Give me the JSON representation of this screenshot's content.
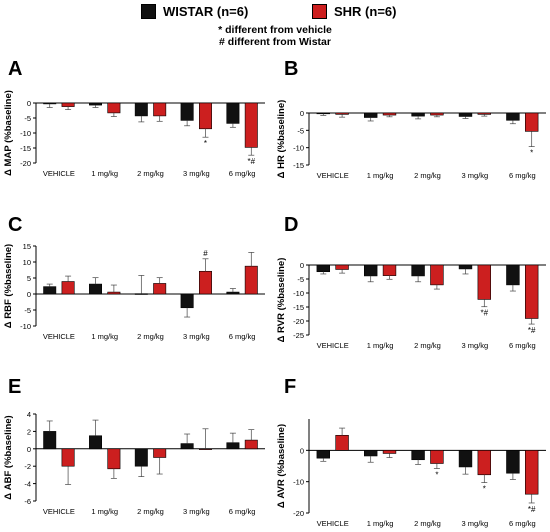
{
  "legend": {
    "items": [
      {
        "label": "WISTAR (n=6)",
        "color": "#111111"
      },
      {
        "label": "SHR (n=6)",
        "color": "#cc1f1f"
      }
    ],
    "note_star": "* different from vehicle",
    "note_hash": "# different from Wistar"
  },
  "chart_data": [
    {
      "panel": "A",
      "type": "bar",
      "ylabel": "Δ MAP (%baseline)",
      "categories": [
        "VEHICLE",
        "1 mg/kg",
        "2 mg/kg",
        "3 mg/kg",
        "6 mg/kg"
      ],
      "ylim": [
        -20,
        0
      ],
      "yticks": [
        0,
        -5,
        -10,
        -15,
        -20
      ],
      "series": [
        {
          "name": "WISTAR (n=6)",
          "values": [
            -0.3,
            -0.7,
            -4.3,
            -5.8,
            -6.8
          ],
          "errors": [
            1.2,
            0.8,
            2.0,
            1.8,
            1.3
          ]
        },
        {
          "name": "SHR (n=6)",
          "values": [
            -1.2,
            -3.3,
            -4.3,
            -8.6,
            -14.8
          ],
          "errors": [
            1.0,
            1.2,
            1.8,
            2.8,
            2.6
          ]
        }
      ],
      "annotations": [
        {
          "category": "3 mg/kg",
          "series": 1,
          "text": "*"
        },
        {
          "category": "6 mg/kg",
          "series": 1,
          "text": "*#"
        }
      ]
    },
    {
      "panel": "B",
      "type": "bar",
      "ylabel": "Δ HR (%baseline)",
      "categories": [
        "VEHICLE",
        "1 mg/kg",
        "2 mg/kg",
        "3 mg/kg",
        "6 mg/kg"
      ],
      "ylim": [
        -15,
        0
      ],
      "yticks": [
        0,
        -5,
        -10,
        -15
      ],
      "series": [
        {
          "name": "WISTAR (n=6)",
          "values": [
            -0.2,
            -1.3,
            -0.9,
            -1.0,
            -2.1
          ],
          "errors": [
            0.5,
            1.0,
            0.8,
            0.6,
            1.0
          ]
        },
        {
          "name": "SHR (n=6)",
          "values": [
            -0.4,
            -0.6,
            -0.6,
            -0.4,
            -5.3
          ],
          "errors": [
            0.8,
            0.5,
            0.5,
            0.5,
            4.4
          ]
        }
      ],
      "annotations": [
        {
          "category": "6 mg/kg",
          "series": 1,
          "text": "*"
        }
      ]
    },
    {
      "panel": "C",
      "type": "bar",
      "ylabel": "Δ RBF (%baseline)",
      "categories": [
        "VEHICLE",
        "1 mg/kg",
        "2 mg/kg",
        "3 mg/kg",
        "6 mg/kg"
      ],
      "ylim": [
        -10,
        15
      ],
      "yticks": [
        15,
        10,
        5,
        0,
        -5,
        -10
      ],
      "series": [
        {
          "name": "WISTAR (n=6)",
          "values": [
            2.3,
            3.1,
            0.1,
            -4.3,
            0.6
          ],
          "errors": [
            0.8,
            2.0,
            5.7,
            2.9,
            1.1
          ]
        },
        {
          "name": "SHR (n=6)",
          "values": [
            3.9,
            0.6,
            3.3,
            7.1,
            8.7
          ],
          "errors": [
            1.7,
            2.2,
            1.8,
            3.9,
            4.3
          ]
        }
      ],
      "annotations": [
        {
          "category": "3 mg/kg",
          "series": 1,
          "text": "#"
        }
      ]
    },
    {
      "panel": "D",
      "type": "bar",
      "ylabel": "Δ RVR (%baseline)",
      "categories": [
        "VEHICLE",
        "1 mg/kg",
        "2 mg/kg",
        "3 mg/kg",
        "6 mg/kg"
      ],
      "ylim": [
        -25,
        0
      ],
      "yticks": [
        0,
        -5,
        -10,
        -15,
        -20,
        -25
      ],
      "series": [
        {
          "name": "WISTAR (n=6)",
          "values": [
            -2.4,
            -3.9,
            -3.9,
            -1.4,
            -7.1
          ],
          "errors": [
            0.8,
            2.1,
            2.1,
            1.8,
            2.2
          ]
        },
        {
          "name": "SHR (n=6)",
          "values": [
            -1.6,
            -3.8,
            -7.1,
            -12.3,
            -19.1
          ],
          "errors": [
            1.3,
            1.3,
            1.5,
            2.6,
            2.0
          ]
        }
      ],
      "annotations": [
        {
          "category": "3 mg/kg",
          "series": 1,
          "text": "*#"
        },
        {
          "category": "6 mg/kg",
          "series": 1,
          "text": "*#"
        }
      ]
    },
    {
      "panel": "E",
      "type": "bar",
      "ylabel": "Δ ABF (%baseline)",
      "categories": [
        "VEHICLE",
        "1 mg/kg",
        "2 mg/kg",
        "3 mg/kg",
        "6 mg/kg"
      ],
      "ylim": [
        -6,
        4
      ],
      "yticks": [
        4,
        2,
        0,
        -2,
        -4,
        -6
      ],
      "series": [
        {
          "name": "WISTAR (n=6)",
          "values": [
            2.0,
            1.5,
            -2.0,
            0.6,
            0.7
          ],
          "errors": [
            1.2,
            1.8,
            1.2,
            1.1,
            1.1
          ]
        },
        {
          "name": "SHR (n=6)",
          "values": [
            -2.0,
            -2.3,
            -1.0,
            0.0,
            1.0
          ],
          "errors": [
            2.1,
            1.1,
            1.9,
            2.3,
            1.2
          ]
        }
      ],
      "annotations": []
    },
    {
      "panel": "F",
      "type": "bar",
      "ylabel": "Δ AVR (%baseline)",
      "categories": [
        "VEHICLE",
        "1 mg/kg",
        "2 mg/kg",
        "3 mg/kg",
        "6 mg/kg"
      ],
      "ylim": [
        -20,
        10
      ],
      "yticks": [
        0,
        -10,
        -20
      ],
      "series": [
        {
          "name": "WISTAR (n=6)",
          "values": [
            -2.5,
            -1.8,
            -3.0,
            -5.3,
            -7.3
          ],
          "errors": [
            1.0,
            2.0,
            1.5,
            2.3,
            2.0
          ]
        },
        {
          "name": "SHR (n=6)",
          "values": [
            4.8,
            -1.0,
            -4.2,
            -7.8,
            -14.0
          ],
          "errors": [
            2.3,
            1.3,
            1.6,
            2.5,
            2.8
          ]
        }
      ],
      "annotations": [
        {
          "category": "2 mg/kg",
          "series": 1,
          "text": "*"
        },
        {
          "category": "3 mg/kg",
          "series": 1,
          "text": "*"
        },
        {
          "category": "6 mg/kg",
          "series": 1,
          "text": "*#"
        }
      ]
    }
  ]
}
